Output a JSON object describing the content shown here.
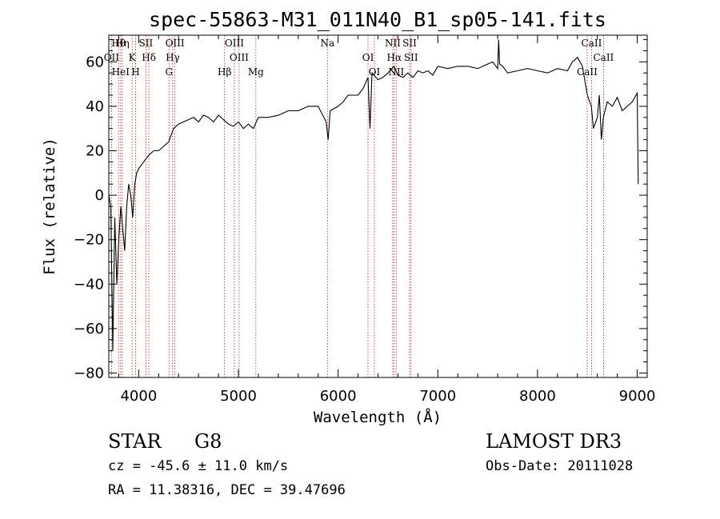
{
  "chart_data": {
    "type": "line",
    "title": "spec-55863-M31_011N40_B1_sp05-141.fits",
    "xlabel": "Wavelength (Å)",
    "ylabel": "Flux (relative)",
    "xlim": [
      3700,
      9100
    ],
    "ylim": [
      -82,
      72
    ],
    "xticks": [
      4000,
      5000,
      6000,
      7000,
      8000,
      9000
    ],
    "yticks": [
      -80,
      -60,
      -40,
      -20,
      0,
      20,
      40,
      60
    ],
    "series": [
      {
        "name": "flux",
        "x": [
          3700,
          3720,
          3740,
          3760,
          3780,
          3800,
          3820,
          3840,
          3860,
          3880,
          3900,
          3920,
          3940,
          3960,
          3980,
          4000,
          4050,
          4100,
          4150,
          4200,
          4250,
          4300,
          4350,
          4400,
          4450,
          4500,
          4550,
          4600,
          4650,
          4700,
          4750,
          4800,
          4850,
          4900,
          4950,
          5000,
          5050,
          5100,
          5150,
          5200,
          5300,
          5400,
          5500,
          5600,
          5700,
          5800,
          5880,
          5900,
          5920,
          6000,
          6050,
          6100,
          6150,
          6200,
          6250,
          6300,
          6320,
          6340,
          6400,
          6450,
          6500,
          6560,
          6600,
          6650,
          6700,
          6750,
          6800,
          6850,
          6900,
          6950,
          7000,
          7100,
          7200,
          7300,
          7400,
          7500,
          7550,
          7600,
          7610,
          7620,
          7650,
          7700,
          7800,
          7900,
          8000,
          8100,
          8200,
          8300,
          8350,
          8400,
          8450,
          8500,
          8540,
          8560,
          8600,
          8620,
          8640,
          8660,
          8700,
          8750,
          8800,
          8850,
          8900,
          8950,
          9000,
          9010
        ],
        "values": [
          0,
          -5,
          -70,
          -10,
          -40,
          -20,
          -5,
          -15,
          -25,
          -5,
          5,
          0,
          -10,
          5,
          10,
          12,
          15,
          18,
          20,
          20,
          22,
          24,
          30,
          32,
          33,
          34,
          35,
          33,
          36,
          35,
          33,
          36,
          34,
          32,
          31,
          33,
          30,
          32,
          30,
          35,
          35,
          36,
          38,
          38,
          40,
          40,
          33,
          25,
          38,
          40,
          42,
          45,
          45,
          45,
          48,
          53,
          30,
          55,
          52,
          53,
          55,
          58,
          54,
          53,
          55,
          53,
          56,
          55,
          56,
          54,
          58,
          57,
          58,
          58,
          57,
          59,
          60,
          57,
          70,
          59,
          58,
          55,
          56,
          57,
          56,
          55,
          57,
          56,
          60,
          62,
          58,
          45,
          40,
          30,
          35,
          45,
          25,
          35,
          42,
          40,
          44,
          38,
          40,
          42,
          46,
          5
        ]
      }
    ],
    "lines": [
      {
        "label": "Hθ",
        "wave": 3798
      },
      {
        "label": "OII",
        "wave": 3727
      },
      {
        "label": "HeI",
        "wave": 3819
      },
      {
        "label": "Hη",
        "wave": 3835
      },
      {
        "label": "K",
        "wave": 3934
      },
      {
        "label": "H",
        "wave": 3969
      },
      {
        "label": "SII",
        "wave": 4072
      },
      {
        "label": "Hδ",
        "wave": 4102
      },
      {
        "label": "G",
        "wave": 4304
      },
      {
        "label": "OIII",
        "wave": 4363
      },
      {
        "label": "Hγ",
        "wave": 4341
      },
      {
        "label": "Hβ",
        "wave": 4861
      },
      {
        "label": "OIII",
        "wave": 4959
      },
      {
        "label": "OIII",
        "wave": 5007
      },
      {
        "label": "Mg",
        "wave": 5175
      },
      {
        "label": "Na",
        "wave": 5893
      },
      {
        "label": "OI",
        "wave": 6300
      },
      {
        "label": "OI",
        "wave": 6364
      },
      {
        "label": "NII",
        "wave": 6548
      },
      {
        "label": "Hα",
        "wave": 6563
      },
      {
        "label": "NII",
        "wave": 6583
      },
      {
        "label": "SII",
        "wave": 6717
      },
      {
        "label": "SII",
        "wave": 6731
      },
      {
        "label": "CaII",
        "wave": 8498
      },
      {
        "label": "CaII",
        "wave": 8542
      },
      {
        "label": "CaII",
        "wave": 8662
      }
    ]
  },
  "info": {
    "class": "STAR",
    "subclass": "G8",
    "survey": "LAMOST DR3",
    "cz": "cz = -45.6 ± 11.0 km/s",
    "obsdate": "Obs-Date: 20111028",
    "radec": "RA =  11.38316, DEC =  39.47696"
  }
}
